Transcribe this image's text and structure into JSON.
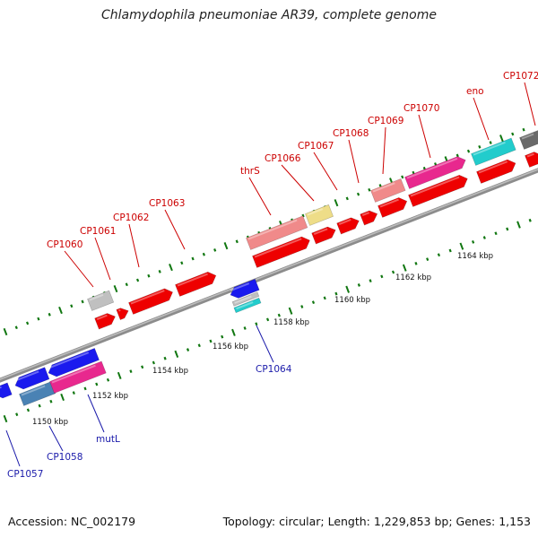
{
  "title": "Chlamydophila pneumoniae AR39, complete genome",
  "footer": {
    "accession": "Accession: NC_002179",
    "topology": "Topology: circular; Length: 1,229,853 bp; Genes: 1,153"
  },
  "colors": {
    "forward_label": "#cc0000",
    "reverse_label": "#1a1aaa",
    "backbone": "#8c8c8c",
    "tick": "#117711"
  },
  "scale_ticks": [
    "1150 kbp",
    "1152 kbp",
    "1154 kbp",
    "1156 kbp",
    "1158 kbp",
    "1160 kbp",
    "1162 kbp",
    "1164 kbp"
  ],
  "forward_labels": [
    "CP1060",
    "CP1061",
    "CP1062",
    "CP1063",
    "thrS",
    "CP1066",
    "CP1067",
    "CP1068",
    "CP1069",
    "CP1070",
    "eno",
    "CP1072"
  ],
  "reverse_labels": [
    "CP1057",
    "CP1058",
    "mutL",
    "CP1064"
  ],
  "gene_colors": {
    "red": "#ee0000",
    "pink": "#f08a8a",
    "magenta": "#e8288e",
    "cyan": "#22cccc",
    "blue": "#1a1aee",
    "steel": "#4a82b4",
    "khaki": "#eedd88",
    "silver": "#c0c0c0",
    "gray": "#6a6a6a"
  }
}
